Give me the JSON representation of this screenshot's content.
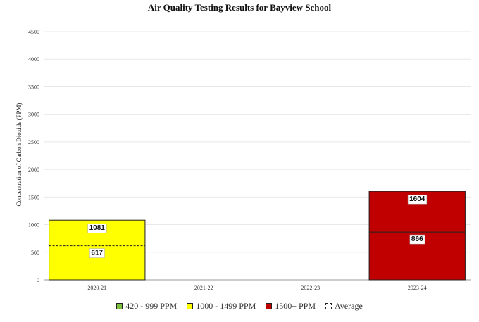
{
  "chart_data": {
    "type": "bar",
    "title": "Air Quality Testing Results for Bayview School",
    "ylabel": "Concentration of Carbon Dioxide (PPM)",
    "xlabel": "",
    "categories": [
      "2020-21",
      "2021-22",
      "2022-23",
      "2023-24"
    ],
    "values": [
      1081,
      null,
      null,
      1604
    ],
    "averages": [
      617,
      null,
      null,
      866
    ],
    "bar_band": [
      "1000 - 1499 PPM",
      null,
      null,
      "1500+ PPM"
    ],
    "ylim": [
      0,
      4500
    ],
    "yticks": [
      0,
      500,
      1000,
      1500,
      2000,
      2500,
      3000,
      3500,
      4000,
      4500
    ],
    "grid": true,
    "legend_position": "bottom",
    "legend": [
      {
        "label": "420 - 999 PPM",
        "color": "#7fbf3f"
      },
      {
        "label": "1000 - 1499 PPM",
        "color": "#ffff00"
      },
      {
        "label": "1500+ PPM",
        "color": "#c00000"
      },
      {
        "label": "Average",
        "style": "dashed"
      }
    ]
  }
}
